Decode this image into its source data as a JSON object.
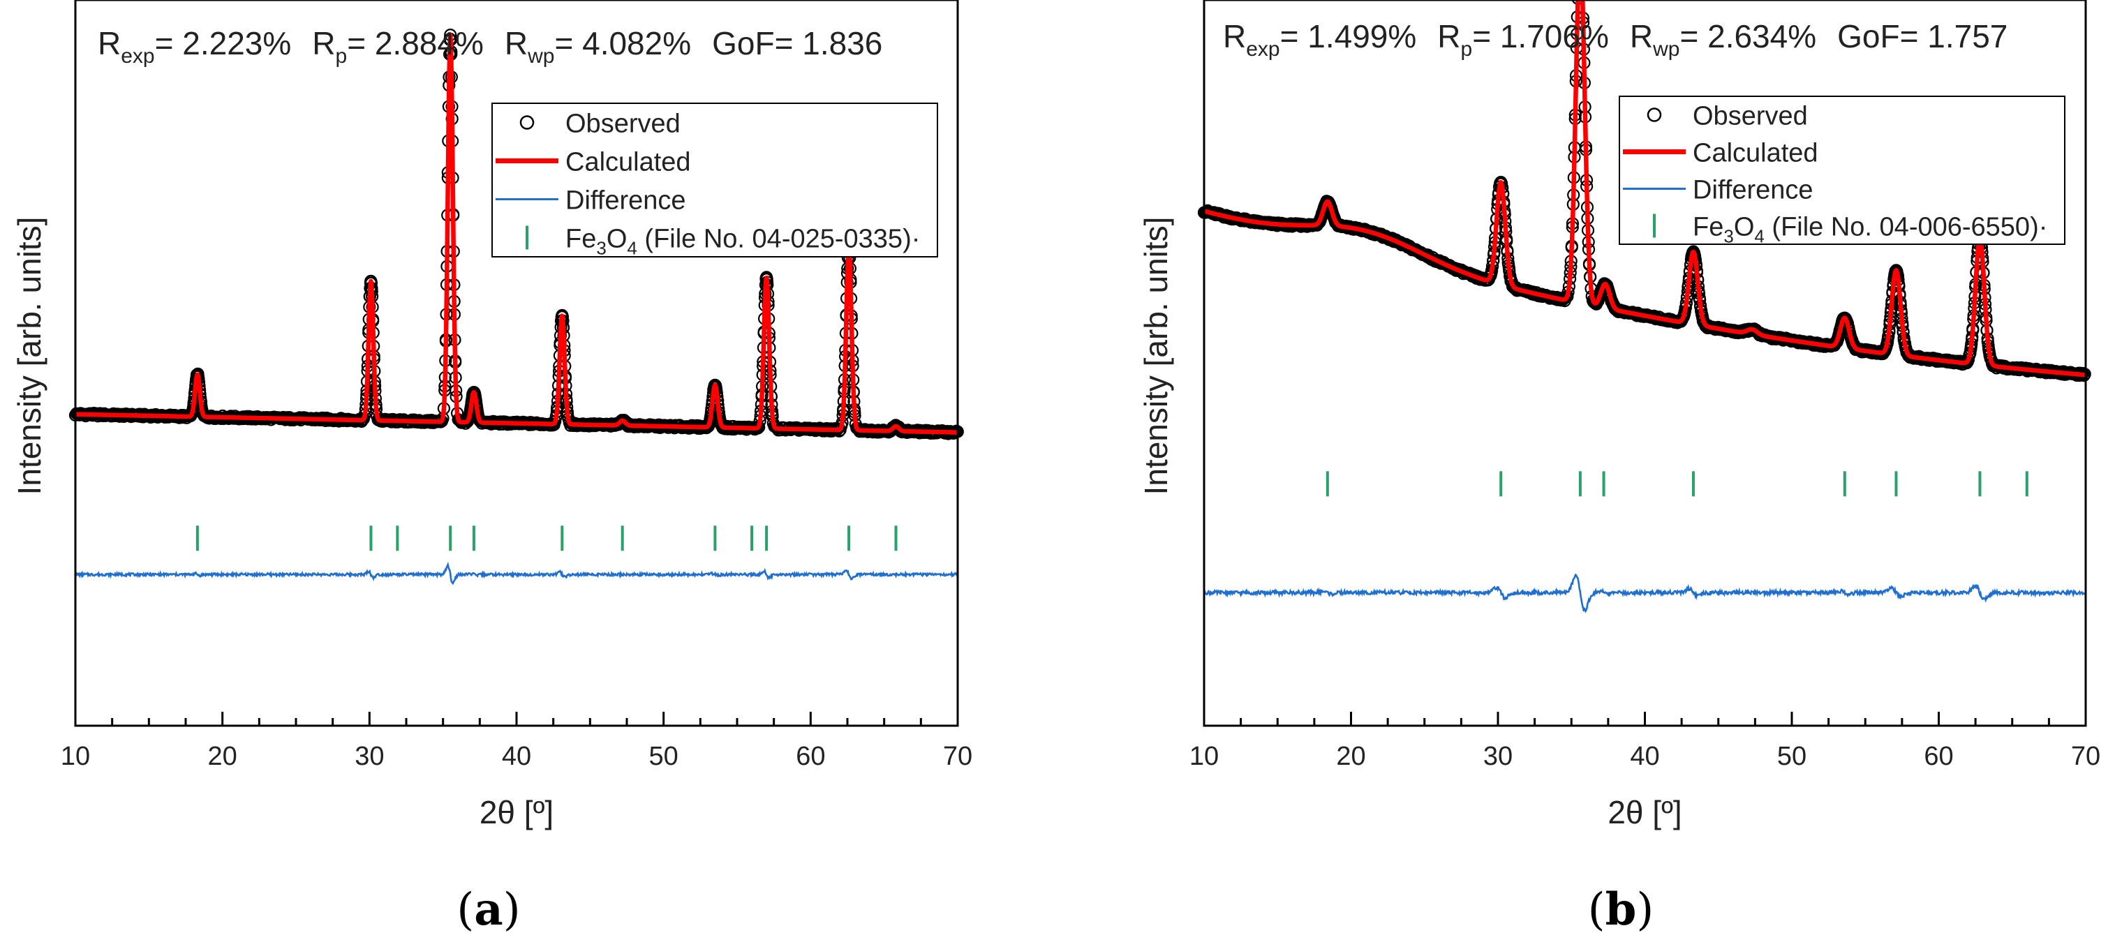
{
  "chart_data": [
    {
      "type": "line",
      "panel_label": "a",
      "title_stats": [
        {
          "sym": "R",
          "sub": "exp",
          "value": "2.223%"
        },
        {
          "sym": "R",
          "sub": "p",
          "value": "2.884%"
        },
        {
          "sym": "R",
          "sub": "wp",
          "value": "4.082%"
        },
        {
          "sym": "GoF",
          "sub": "",
          "value": "1.836"
        }
      ],
      "xlabel": "2θ [º]",
      "ylabel": "Intensity [arb. units]",
      "xlim": [
        10,
        70
      ],
      "ylim": [
        -20,
        100
      ],
      "xticks": [
        10,
        20,
        30,
        40,
        50,
        60,
        70
      ],
      "legend": [
        {
          "label": "Observed",
          "kind": "marker"
        },
        {
          "label": "Calculated",
          "kind": "line-red"
        },
        {
          "label": "Difference",
          "kind": "line-blue"
        },
        {
          "label_prefix": "Fe",
          "sub1": "3",
          "mid": "O",
          "sub2": "4",
          "label_suffix": " (File No. 04-025-0335)·",
          "kind": "tick"
        }
      ],
      "background": {
        "start": 31.5,
        "end": 28.5
      },
      "peaks": [
        {
          "x": 18.3,
          "h": 7,
          "w": 0.16
        },
        {
          "x": 30.1,
          "h": 23,
          "w": 0.16
        },
        {
          "x": 35.5,
          "h": 64,
          "w": 0.17
        },
        {
          "x": 37.1,
          "h": 5,
          "w": 0.17
        },
        {
          "x": 43.1,
          "h": 18,
          "w": 0.17
        },
        {
          "x": 47.2,
          "h": 0.8,
          "w": 0.2
        },
        {
          "x": 53.5,
          "h": 7,
          "w": 0.18
        },
        {
          "x": 57.0,
          "h": 25,
          "w": 0.18
        },
        {
          "x": 62.6,
          "h": 30,
          "w": 0.18
        },
        {
          "x": 65.8,
          "h": 0.8,
          "w": 0.2
        }
      ],
      "bragg_positions": [
        18.3,
        30.1,
        31.9,
        35.5,
        37.1,
        43.1,
        47.2,
        53.5,
        56.0,
        57.0,
        62.6,
        65.8
      ],
      "difference_level": 5,
      "tick_level": 11,
      "diff_noise": 0.35,
      "diff_spikes": 1.1
    },
    {
      "type": "line",
      "panel_label": "b",
      "title_stats": [
        {
          "sym": "R",
          "sub": "exp",
          "value": "1.499%"
        },
        {
          "sym": "R",
          "sub": "p",
          "value": "1.706%"
        },
        {
          "sym": "R",
          "sub": "wp",
          "value": "2.634%"
        },
        {
          "sym": "GoF",
          "sub": "",
          "value": "1.757"
        }
      ],
      "xlabel": "2θ [º]",
      "ylabel": "Intensity [arb. units]",
      "xlim": [
        10,
        70
      ],
      "ylim": [
        -20,
        100
      ],
      "xticks": [
        10,
        20,
        30,
        40,
        50,
        60,
        70
      ],
      "legend": [
        {
          "label": "Observed",
          "kind": "marker"
        },
        {
          "label": "Calculated",
          "kind": "line-red"
        },
        {
          "label": "Difference",
          "kind": "line-blue"
        },
        {
          "label_prefix": "Fe",
          "sub1": "3",
          "mid": "O",
          "sub2": "4",
          "label_suffix": " (File No. 04-006-6550)·",
          "kind": "tick"
        }
      ],
      "background": {
        "start": 65,
        "end": 38
      },
      "peaks": [
        {
          "x": 18.4,
          "h": 4,
          "w": 0.3
        },
        {
          "x": 30.2,
          "h": 17,
          "w": 0.3
        },
        {
          "x": 35.6,
          "h": 58,
          "w": 0.3
        },
        {
          "x": 37.3,
          "h": 4,
          "w": 0.3
        },
        {
          "x": 43.3,
          "h": 12,
          "w": 0.3
        },
        {
          "x": 47.3,
          "h": 0.8,
          "w": 0.35
        },
        {
          "x": 53.6,
          "h": 5,
          "w": 0.3
        },
        {
          "x": 57.1,
          "h": 14,
          "w": 0.3
        },
        {
          "x": 62.8,
          "h": 21,
          "w": 0.3
        }
      ],
      "bragg_positions": [
        18.4,
        30.2,
        35.6,
        37.2,
        43.3,
        53.6,
        57.1,
        62.8,
        66.0
      ],
      "difference_level": 2,
      "tick_level": 20,
      "diff_noise": 0.5,
      "diff_spikes": 2.5
    }
  ]
}
